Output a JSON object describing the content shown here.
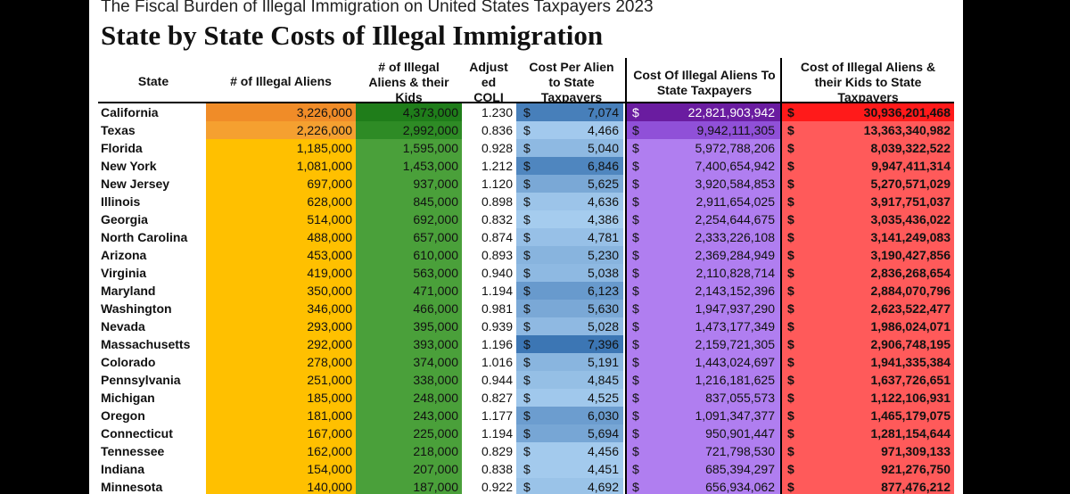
{
  "subtitle": "The Fiscal Burden of Illegal Immigration on United States Taxpayers 2023",
  "title": "State by State Costs of Illegal Immigration",
  "columns": {
    "state": [
      "State"
    ],
    "illegal_aliens": [
      "# of Illegal Aliens"
    ],
    "aliens_and_kids": [
      "# of Illegal",
      "Aliens & their",
      "Kids"
    ],
    "adjusted_coli": [
      "Adjust",
      "ed",
      "COLI"
    ],
    "cost_per_alien": [
      "Cost Per Alien",
      "to State",
      "Taxpayers"
    ],
    "cost_state": [
      "Cost Of Illegal Aliens To",
      "State Taxpayers"
    ],
    "cost_kids": [
      "Cost of Illegal Aliens &",
      "their Kids to State",
      "Taxpayers"
    ]
  },
  "currency_symbol": "$",
  "highlight_colors": {
    "ca_aliens": "#f08c28",
    "tx_aliens": "#f5a030",
    "ca_kids": "#1f7d1a",
    "tx_kids": "#2e8b25",
    "ca_cost": "#6a1ca0",
    "tx_cost": "#9050d8",
    "ca_kids_cost": "#ff1a1a"
  },
  "rows": [
    {
      "state": "California",
      "aliens": "3,226,000",
      "kids": "4,373,000",
      "coli": "1.230",
      "cpa": "7,074",
      "cost": "22,821,903,942",
      "kcost": "30,936,201,468"
    },
    {
      "state": "Texas",
      "aliens": "2,226,000",
      "kids": "2,992,000",
      "coli": "0.836",
      "cpa": "4,466",
      "cost": "9,942,111,305",
      "kcost": "13,363,340,982"
    },
    {
      "state": "Florida",
      "aliens": "1,185,000",
      "kids": "1,595,000",
      "coli": "0.928",
      "cpa": "5,040",
      "cost": "5,972,788,206",
      "kcost": "8,039,322,522"
    },
    {
      "state": "New York",
      "aliens": "1,081,000",
      "kids": "1,453,000",
      "coli": "1.212",
      "cpa": "6,846",
      "cost": "7,400,654,942",
      "kcost": "9,947,411,314"
    },
    {
      "state": "New Jersey",
      "aliens": "697,000",
      "kids": "937,000",
      "coli": "1.120",
      "cpa": "5,625",
      "cost": "3,920,584,853",
      "kcost": "5,270,571,029"
    },
    {
      "state": "Illinois",
      "aliens": "628,000",
      "kids": "845,000",
      "coli": "0.898",
      "cpa": "4,636",
      "cost": "2,911,654,025",
      "kcost": "3,917,751,037"
    },
    {
      "state": "Georgia",
      "aliens": "514,000",
      "kids": "692,000",
      "coli": "0.832",
      "cpa": "4,386",
      "cost": "2,254,644,675",
      "kcost": "3,035,436,022"
    },
    {
      "state": "North Carolina",
      "aliens": "488,000",
      "kids": "657,000",
      "coli": "0.874",
      "cpa": "4,781",
      "cost": "2,333,226,108",
      "kcost": "3,141,249,083"
    },
    {
      "state": "Arizona",
      "aliens": "453,000",
      "kids": "610,000",
      "coli": "0.893",
      "cpa": "5,230",
      "cost": "2,369,284,949",
      "kcost": "3,190,427,856"
    },
    {
      "state": "Virginia",
      "aliens": "419,000",
      "kids": "563,000",
      "coli": "0.940",
      "cpa": "5,038",
      "cost": "2,110,828,714",
      "kcost": "2,836,268,654"
    },
    {
      "state": "Maryland",
      "aliens": "350,000",
      "kids": "471,000",
      "coli": "1.194",
      "cpa": "6,123",
      "cost": "2,143,152,396",
      "kcost": "2,884,070,796"
    },
    {
      "state": "Washington",
      "aliens": "346,000",
      "kids": "466,000",
      "coli": "0.981",
      "cpa": "5,630",
      "cost": "1,947,937,290",
      "kcost": "2,623,522,477"
    },
    {
      "state": "Nevada",
      "aliens": "293,000",
      "kids": "395,000",
      "coli": "0.939",
      "cpa": "5,028",
      "cost": "1,473,177,349",
      "kcost": "1,986,024,071"
    },
    {
      "state": "Massachusetts",
      "aliens": "292,000",
      "kids": "393,000",
      "coli": "1.196",
      "cpa": "7,396",
      "cost": "2,159,721,305",
      "kcost": "2,906,748,195"
    },
    {
      "state": "Colorado",
      "aliens": "278,000",
      "kids": "374,000",
      "coli": "1.016",
      "cpa": "5,191",
      "cost": "1,443,024,697",
      "kcost": "1,941,335,384"
    },
    {
      "state": "Pennsylvania",
      "aliens": "251,000",
      "kids": "338,000",
      "coli": "0.944",
      "cpa": "4,845",
      "cost": "1,216,181,625",
      "kcost": "1,637,726,651"
    },
    {
      "state": "Michigan",
      "aliens": "185,000",
      "kids": "248,000",
      "coli": "0.827",
      "cpa": "4,525",
      "cost": "837,055,573",
      "kcost": "1,122,106,931"
    },
    {
      "state": "Oregon",
      "aliens": "181,000",
      "kids": "243,000",
      "coli": "1.177",
      "cpa": "6,030",
      "cost": "1,091,347,377",
      "kcost": "1,465,179,075"
    },
    {
      "state": "Connecticut",
      "aliens": "167,000",
      "kids": "225,000",
      "coli": "1.194",
      "cpa": "5,694",
      "cost": "950,901,447",
      "kcost": "1,281,154,644"
    },
    {
      "state": "Tennessee",
      "aliens": "162,000",
      "kids": "218,000",
      "coli": "0.829",
      "cpa": "4,456",
      "cost": "721,798,530",
      "kcost": "971,309,133"
    },
    {
      "state": "Indiana",
      "aliens": "154,000",
      "kids": "207,000",
      "coli": "0.838",
      "cpa": "4,451",
      "cost": "685,394,297",
      "kcost": "921,276,750"
    },
    {
      "state": "Minnesota",
      "aliens": "140,000",
      "kids": "187,000",
      "coli": "0.922",
      "cpa": "4,692",
      "cost": "656,934,062",
      "kcost": "877,476,212"
    }
  ]
}
